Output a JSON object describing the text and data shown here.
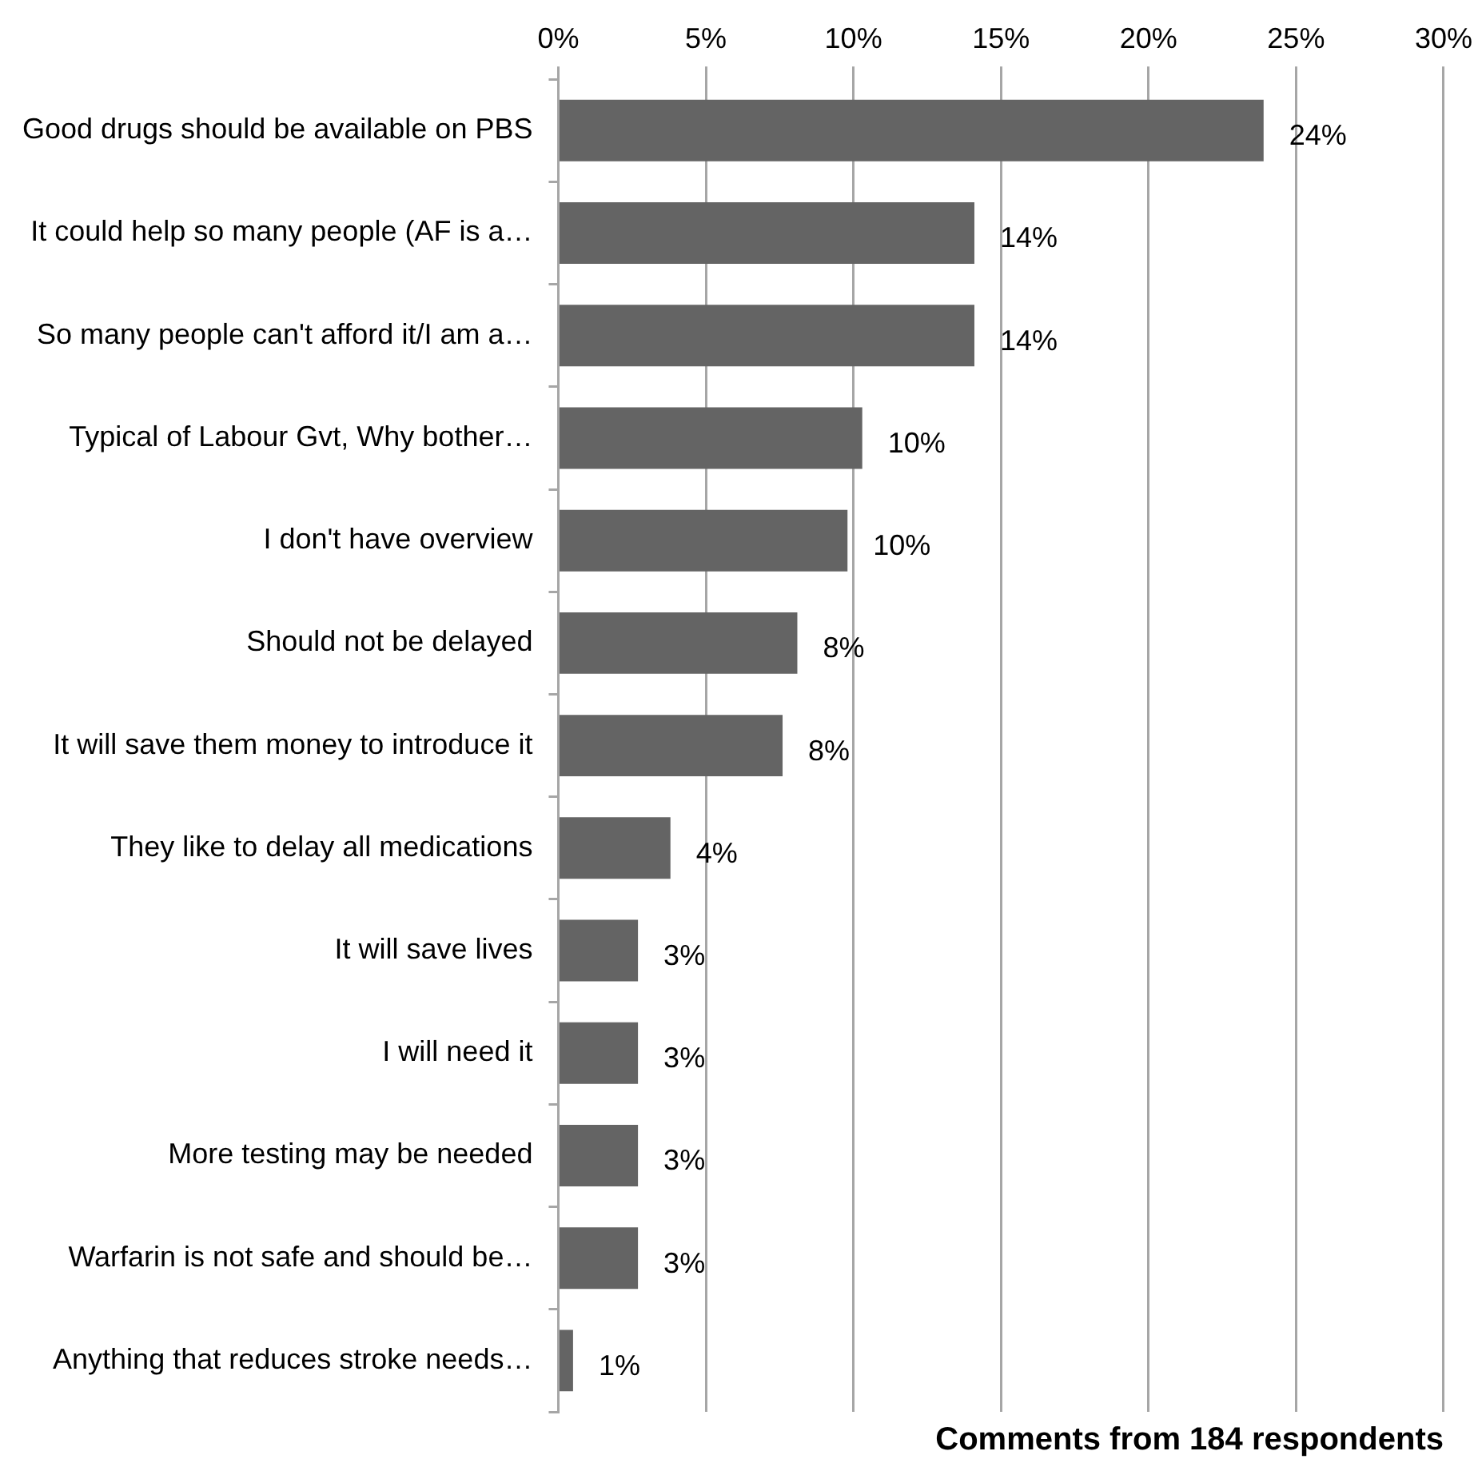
{
  "chart_data": {
    "type": "bar",
    "orientation": "horizontal",
    "title": "Comments from 184 respondents",
    "categories": [
      "Good drugs should be available on PBS",
      "It could help so many people (AF is a…",
      "So many people can't afford it/I am a…",
      "Typical of Labour Gvt, Why bother…",
      "I don't have overview",
      "Should not be delayed",
      "It will save them money to introduce it",
      "They like to delay all medications",
      "It will save lives",
      "I will need it",
      "More testing may be needed",
      "Warfarin is not safe and should be…",
      "Anything that reduces stroke needs…"
    ],
    "values": [
      23.9,
      14.1,
      14.1,
      10.3,
      9.8,
      8.1,
      7.6,
      3.8,
      2.7,
      2.7,
      2.7,
      2.7,
      0.5
    ],
    "value_labels": [
      "24%",
      "14%",
      "14%",
      "10%",
      "10%",
      "8%",
      "8%",
      "4%",
      "3%",
      "3%",
      "3%",
      "3%",
      "1%"
    ],
    "color": "#646464",
    "xlim": [
      0,
      30
    ],
    "xticks": [
      {
        "value": 0,
        "label": "0%"
      },
      {
        "value": 5,
        "label": "5%"
      },
      {
        "value": 10,
        "label": "10%"
      },
      {
        "value": 15,
        "label": "15%"
      },
      {
        "value": 20,
        "label": "20%"
      },
      {
        "value": 25,
        "label": "25%"
      },
      {
        "value": 30,
        "label": "30%"
      }
    ],
    "grid": "x"
  }
}
